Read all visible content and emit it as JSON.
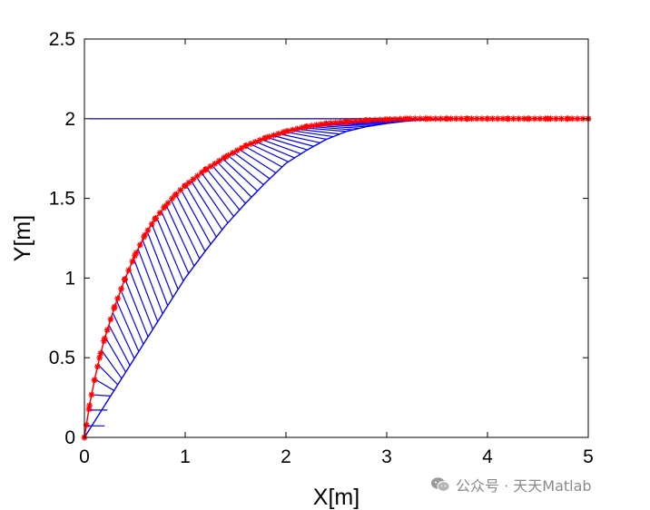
{
  "chart_data": {
    "type": "line",
    "title": "",
    "xlabel": "X[m]",
    "ylabel": "Y[m]",
    "xlim": [
      0,
      5
    ],
    "ylim": [
      0,
      2.5
    ],
    "xticks": [
      "0",
      "1",
      "2",
      "3",
      "4",
      "5"
    ],
    "yticks": [
      "0",
      "0.5",
      "1",
      "1.5",
      "2",
      "2.5"
    ],
    "grid": false,
    "legend": "none",
    "series": [
      {
        "style": "red-star-markers",
        "color": "#ff0000",
        "x": [
          0,
          0.05,
          0.1,
          0.15,
          0.2,
          0.3,
          0.4,
          0.5,
          0.6,
          0.7,
          0.8,
          0.9,
          1.0,
          1.2,
          1.4,
          1.6,
          1.8,
          2.0,
          2.2,
          2.4,
          2.6,
          2.8,
          3.0,
          3.2,
          3.4,
          3.6,
          3.8,
          4.0,
          4.2,
          4.4,
          4.6,
          4.8,
          5.0
        ],
        "y": [
          0,
          0.2,
          0.36,
          0.5,
          0.62,
          0.82,
          0.99,
          1.14,
          1.27,
          1.37,
          1.45,
          1.52,
          1.58,
          1.68,
          1.76,
          1.83,
          1.88,
          1.92,
          1.95,
          1.97,
          1.98,
          1.99,
          1.995,
          2.0,
          2.0,
          2.0,
          2.0,
          2.0,
          2.0,
          2.0,
          2.0,
          2.0,
          2.0
        ]
      },
      {
        "style": "blue-connector-lines",
        "color": "#0000ff",
        "x": [
          0,
          0.1,
          0.2,
          0.3,
          0.4,
          0.5,
          0.6,
          0.7,
          0.8,
          0.9,
          1.0,
          1.2,
          1.4,
          1.6,
          1.8,
          2.0,
          2.2,
          2.4,
          2.6,
          2.8,
          3.0,
          3.2,
          3.4,
          3.6,
          3.8,
          4.0
        ],
        "y": [
          0,
          0.1,
          0.2,
          0.3,
          0.4,
          0.5,
          0.6,
          0.7,
          0.8,
          0.9,
          1.0,
          1.17,
          1.33,
          1.47,
          1.6,
          1.72,
          1.8,
          1.87,
          1.92,
          1.95,
          1.97,
          1.985,
          1.995,
          2.0,
          2.0,
          2.0
        ]
      },
      {
        "style": "reference-line",
        "color": "#4a3fa0",
        "x": [
          0.05,
          5.0
        ],
        "y": [
          2.0,
          2.0
        ]
      }
    ]
  },
  "watermark": {
    "icon": "wechat-icon",
    "text": "公众号 · 天天Matlab"
  }
}
